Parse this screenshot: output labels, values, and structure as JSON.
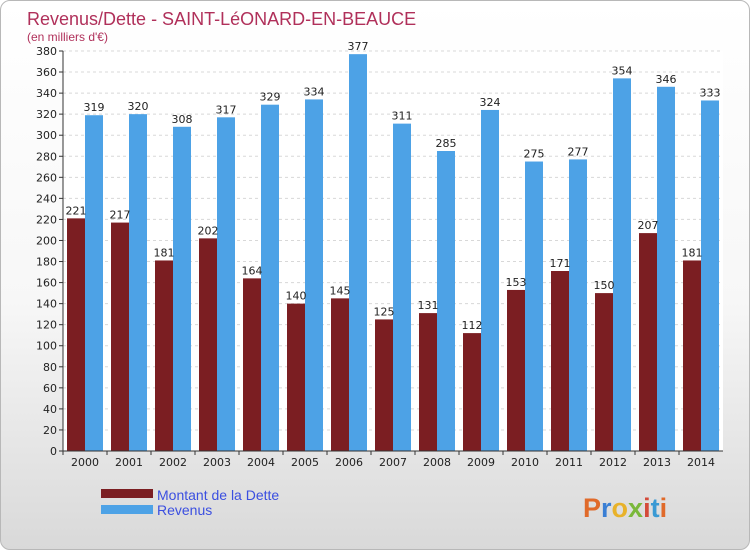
{
  "chart_data": {
    "type": "bar",
    "title": "Revenus/Dette - SAINT-LéONARD-EN-BEAUCE",
    "subtitle": "(en milliers d'€)",
    "categories": [
      "2000",
      "2001",
      "2002",
      "2003",
      "2004",
      "2005",
      "2006",
      "2007",
      "2008",
      "2009",
      "2010",
      "2011",
      "2012",
      "2013",
      "2014"
    ],
    "series": [
      {
        "name": "Montant de la Dette",
        "values": [
          221,
          217,
          181,
          202,
          164,
          140,
          145,
          125,
          131,
          112,
          153,
          171,
          150,
          207,
          181
        ],
        "color": "#7b1e22"
      },
      {
        "name": "Revenus",
        "values": [
          319,
          320,
          308,
          317,
          329,
          334,
          377,
          311,
          285,
          324,
          275,
          277,
          354,
          346,
          333
        ],
        "color": "#4da2e6"
      }
    ],
    "ylim": [
      0,
      380
    ],
    "ytick_step": 20,
    "grid": true,
    "legend": "bottom-left"
  },
  "logo": {
    "text": "Proxiti",
    "colors": [
      "#e06a2a",
      "#3a7fd4",
      "#e8b22a",
      "#7ab83a",
      "#d44a3a",
      "#3a9ad4",
      "#e06a2a"
    ]
  }
}
